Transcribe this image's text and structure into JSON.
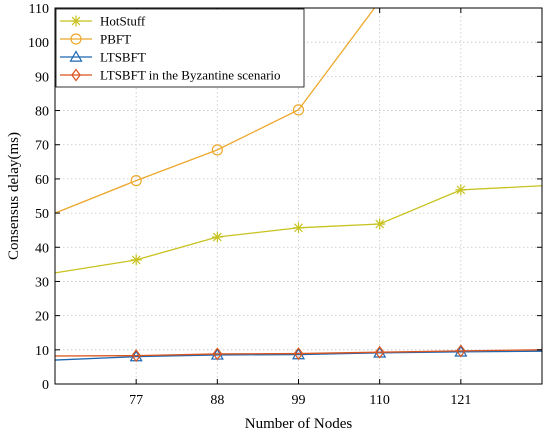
{
  "chart_data": {
    "type": "line",
    "xlabel": "Number of Nodes",
    "ylabel": "Consensus delay(ms)",
    "xlim": [
      66,
      132
    ],
    "ylim": [
      0,
      110
    ],
    "xticks": [
      77,
      88,
      99,
      110,
      121
    ],
    "yticks": [
      0,
      10,
      20,
      30,
      40,
      50,
      60,
      70,
      80,
      90,
      100,
      110
    ],
    "grid": true,
    "legend_position": "top-left",
    "series": [
      {
        "name": "HotStuff",
        "color": "#c8c21e",
        "marker": "asterisk",
        "x": [
          66,
          77,
          88,
          99,
          110,
          121,
          132
        ],
        "y": [
          32.5,
          36.3,
          43.0,
          45.7,
          46.8,
          56.8,
          58.0
        ]
      },
      {
        "name": "PBFT",
        "color": "#eda82c",
        "marker": "circle",
        "x": [
          66,
          77,
          88,
          99,
          110
        ],
        "y": [
          50.0,
          59.5,
          68.5,
          80.2,
          112.0
        ]
      },
      {
        "name": "LTSBFT",
        "color": "#1f67b1",
        "marker": "triangle",
        "x": [
          66,
          77,
          88,
          99,
          110,
          121,
          132
        ],
        "y": [
          7.0,
          8.0,
          8.5,
          8.6,
          9.1,
          9.4,
          9.6
        ]
      },
      {
        "name": "LTSBFT in the Byzantine scenario",
        "color": "#d9541e",
        "marker": "diamond",
        "x": [
          66,
          77,
          88,
          99,
          110,
          121,
          132
        ],
        "y": [
          8.2,
          8.3,
          8.8,
          8.9,
          9.3,
          9.7,
          10.0
        ]
      }
    ]
  }
}
